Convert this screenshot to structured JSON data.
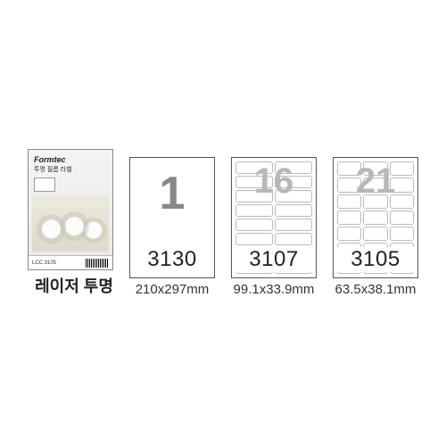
{
  "category_label": "레이저 투명",
  "pack": {
    "brand": "Formtec",
    "subtitle": "투명 필름 라벨",
    "strip_code": "LCC 3105"
  },
  "variants": [
    {
      "count": "1",
      "code": "3130",
      "dim": "210x297mm",
      "grid_cols": 1,
      "grid_rows": 1
    },
    {
      "count": "16",
      "code": "3107",
      "dim": "99.1x33.9mm",
      "grid_cols": 2,
      "grid_rows": 8
    },
    {
      "count": "21",
      "code": "3105",
      "dim": "63.5x38.1mm",
      "grid_cols": 3,
      "grid_rows": 7
    }
  ],
  "colors": {
    "border": "#555555",
    "cell_border": "#bbbbbb",
    "overlay_text": "#b8b8b8",
    "code_text": "#222222",
    "dim_text": "#333333",
    "background": "#ffffff"
  },
  "typography": {
    "count_fontsize": 40,
    "code_fontsize": 24,
    "dim_fontsize": 15,
    "category_fontsize": 18,
    "category_weight": 700
  }
}
